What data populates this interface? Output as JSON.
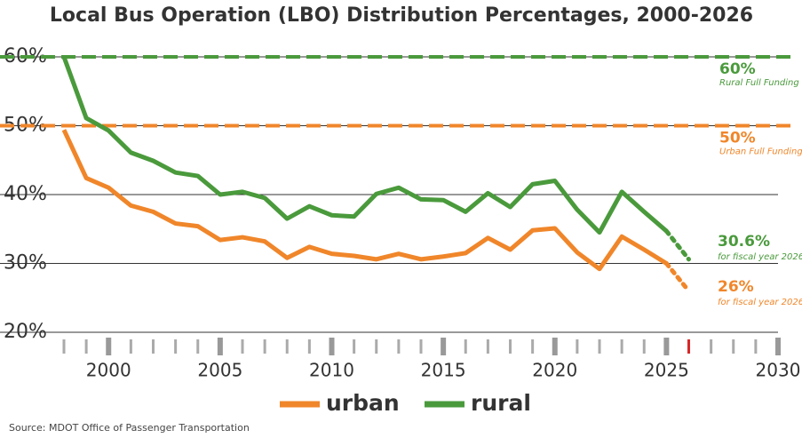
{
  "chart_data": {
    "type": "line",
    "title": "Local Bus Operation (LBO) Distribution Percentages, 2000-2026",
    "x": [
      1998,
      1999,
      2000,
      2001,
      2002,
      2003,
      2004,
      2005,
      2006,
      2007,
      2008,
      2009,
      2010,
      2011,
      2012,
      2013,
      2014,
      2015,
      2016,
      2017,
      2018,
      2019,
      2020,
      2021,
      2022,
      2023,
      2024,
      2025,
      2026
    ],
    "series": [
      {
        "name": "urban",
        "color": "#f0862a",
        "values": [
          49.4,
          42.4,
          41.0,
          38.4,
          37.5,
          35.8,
          35.4,
          33.4,
          33.8,
          33.2,
          30.8,
          32.4,
          31.4,
          31.1,
          30.6,
          31.4,
          30.6,
          31.0,
          31.5,
          33.7,
          32.0,
          34.8,
          35.1,
          31.6,
          29.2,
          33.9,
          32.0,
          30.0,
          26.0
        ]
      },
      {
        "name": "rural",
        "color": "#4a9a3c",
        "values": [
          60.0,
          51.1,
          49.3,
          46.1,
          44.9,
          43.2,
          42.7,
          40.0,
          40.4,
          39.5,
          36.5,
          38.3,
          37.0,
          36.8,
          40.1,
          41.0,
          39.3,
          39.2,
          37.5,
          40.2,
          38.2,
          41.5,
          42.0,
          37.8,
          34.5,
          40.4,
          37.5,
          34.7,
          30.6
        ]
      }
    ],
    "xlim": [
      1998,
      2030
    ],
    "xticks": [
      2000,
      2005,
      2010,
      2015,
      2020,
      2025,
      2030
    ],
    "ylim": [
      20,
      60
    ],
    "yticks": [
      {
        "value": 20,
        "label": "20%"
      },
      {
        "value": 30,
        "label": "30%"
      },
      {
        "value": 40,
        "label": "40%"
      },
      {
        "value": 50,
        "label": "50%"
      },
      {
        "value": 60,
        "label": "60%"
      }
    ],
    "grid": true,
    "reference_lines": [
      {
        "value": 60,
        "color": "#4a9a3c",
        "label": "60%",
        "sublabel": "Rural Full Funding"
      },
      {
        "value": 50,
        "color": "#f0862a",
        "label": "50%",
        "sublabel": "Urban Full Funding"
      }
    ],
    "annotations": [
      {
        "text": "30.6%",
        "subtext": "for fiscal year 2026",
        "color": "#4a9a3c"
      },
      {
        "text": "26%",
        "subtext": "for fiscal year 2026",
        "color": "#f0862a"
      }
    ],
    "source": "Source: MDOT Office of Passenger Transportation"
  }
}
